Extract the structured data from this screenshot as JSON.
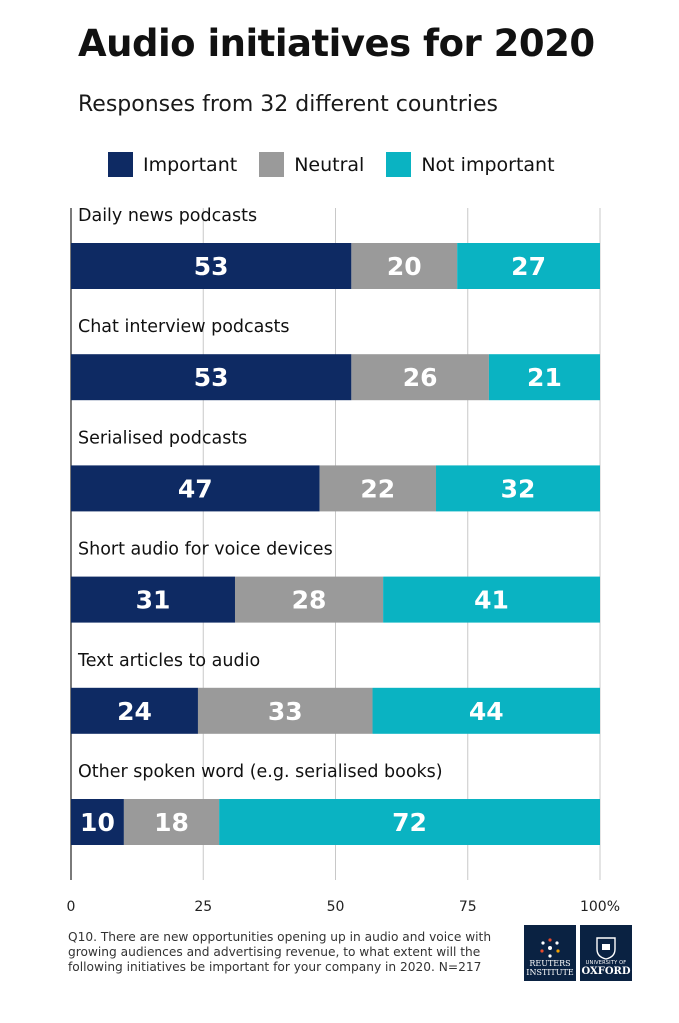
{
  "chart_data": {
    "type": "bar",
    "stacked": true,
    "orientation": "horizontal",
    "title": "Audio initiatives for 2020",
    "subtitle": "Responses from 32 different countries",
    "categories": [
      "Daily news podcasts",
      "Chat interview podcasts",
      "Serialised podcasts",
      "Short audio for voice devices",
      "Text articles to audio",
      "Other spoken word (e.g. serialised books)"
    ],
    "series": [
      {
        "name": "Important",
        "color": "#0e2a63",
        "values": [
          53,
          53,
          47,
          31,
          24,
          10
        ]
      },
      {
        "name": "Neutral",
        "color": "#9a9a9a",
        "values": [
          20,
          26,
          22,
          28,
          33,
          18
        ]
      },
      {
        "name": "Not important",
        "color": "#0ab3c2",
        "values": [
          27,
          21,
          32,
          41,
          44,
          72
        ]
      }
    ],
    "xlim": [
      0,
      100
    ],
    "x_ticks": [
      "0",
      "25",
      "50",
      "75",
      "100%"
    ],
    "grid": true
  },
  "footnote": "Q10. There are new opportunities opening up in audio and voice with growing audiences and advertising revenue, to what extent will the following initiatives be important for your company in 2020. N=217",
  "logos": {
    "reuters": {
      "line1": "REUTERS",
      "line2": "INSTITUTE"
    },
    "oxford": {
      "line1": "UNIVERSITY OF",
      "line2": "OXFORD"
    }
  }
}
